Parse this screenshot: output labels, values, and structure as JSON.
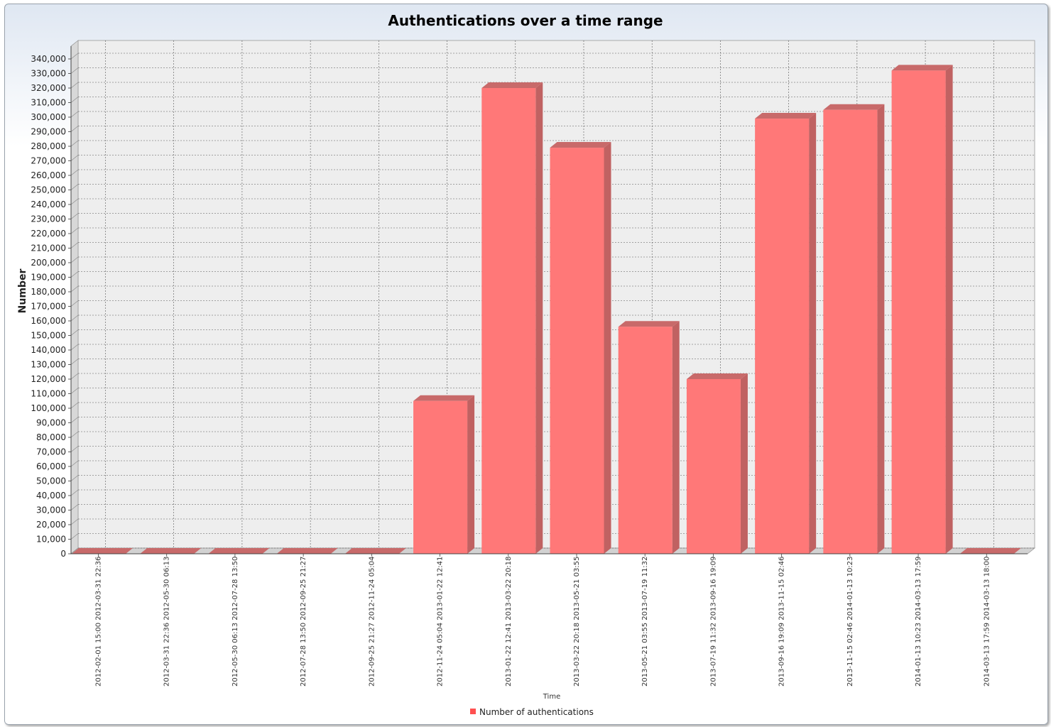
{
  "chart_data": {
    "type": "bar",
    "title": "Authentications over a time range",
    "xlabel": "Time",
    "ylabel": "Number",
    "ylim": [
      0,
      340000
    ],
    "ytick_step": 10000,
    "grid": true,
    "legend_placement": "bottom-center",
    "categories": [
      "2012-02-01 15:00  2012-03-31 22:36",
      "2012-03-31 22:36  2012-05-30 06:13",
      "2012-05-30 06:13  2012-07-28 13:50",
      "2012-07-28 13:50  2012-09-25 21:27",
      "2012-09-25 21:27  2012-11-24 05:04",
      "2012-11-24 05:04  2013-01-22 12:41",
      "2013-01-22 12:41  2013-03-22 20:18",
      "2013-03-22 20:18  2013-05-21 03:55",
      "2013-05-21 03:55  2013-07-19 11:32",
      "2013-07-19 11:32  2013-09-16 19:09",
      "2013-09-16 19:09  2013-11-15 02:46",
      "2013-11-15 02:46  2014-01-13 10:23",
      "2014-01-13 10:23  2014-03-13 17:59",
      "2014-03-13 17:59  2014-03-13 18:00"
    ],
    "series": [
      {
        "name": "Number of authentications",
        "color": "#ff7878",
        "values": [
          0,
          0,
          0,
          0,
          0,
          105000,
          320000,
          279000,
          156000,
          120000,
          299000,
          305000,
          332000,
          0
        ]
      }
    ]
  }
}
